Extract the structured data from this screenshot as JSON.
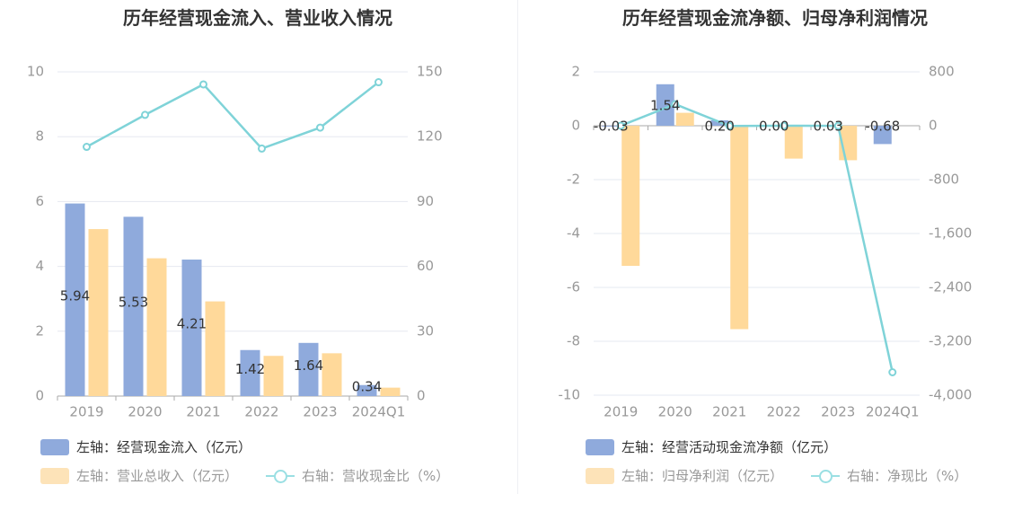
{
  "charts": {
    "left": {
      "title": "历年经营现金流入、营业收入情况",
      "legend": [
        {
          "label": "左轴：经营现金流入（亿元）",
          "color": "#8faadc"
        },
        {
          "label": "左轴：营业总收入（亿元）",
          "color": "#ffd99a"
        },
        {
          "label": "右轴：营收现金比（%）",
          "color": "#7fd3d8"
        }
      ]
    },
    "right": {
      "title": "历年经营现金流净额、归母净利润情况",
      "legend": [
        {
          "label": "左轴：经营活动现金流净额（亿元）",
          "color": "#8faadc"
        },
        {
          "label": "左轴：归母净利润（亿元）",
          "color": "#ffd99a"
        },
        {
          "label": "右轴：净现比（%）",
          "color": "#7fd3d8"
        }
      ]
    }
  },
  "chart_data": [
    {
      "type": "bar",
      "title": "历年经营现金流入、营业收入情况",
      "categories": [
        "2019",
        "2020",
        "2021",
        "2022",
        "2023",
        "2024Q1"
      ],
      "left_axis": {
        "ylim": [
          0,
          10
        ],
        "ticks": [
          "0",
          "2",
          "4",
          "6",
          "8",
          "10"
        ]
      },
      "right_axis": {
        "ylim": [
          0,
          150
        ],
        "ticks": [
          "0",
          "30",
          "60",
          "90",
          "120",
          "150"
        ]
      },
      "series": [
        {
          "name": "左轴：经营现金流入（亿元）",
          "kind": "bar",
          "axis": "left",
          "color": "#8faadc",
          "values": [
            5.94,
            5.53,
            4.21,
            1.42,
            1.64,
            0.34
          ],
          "labels": [
            "5.94",
            "5.53",
            "4.21",
            "1.42",
            "1.64",
            "0.34"
          ]
        },
        {
          "name": "左轴：营业总收入（亿元）",
          "kind": "bar",
          "axis": "left",
          "color": "#ffd99a",
          "values": [
            5.15,
            4.25,
            2.92,
            1.24,
            1.32,
            0.26
          ]
        },
        {
          "name": "右轴：营收现金比（%）",
          "kind": "line",
          "axis": "right",
          "color": "#7fd3d8",
          "values": [
            115.3,
            130.1,
            144.2,
            114.5,
            124.2,
            145.2
          ]
        }
      ],
      "grid": true,
      "legend_position": "bottom-left"
    },
    {
      "type": "bar",
      "title": "历年经营现金流净额、归母净利润情况",
      "categories": [
        "2019",
        "2020",
        "2021",
        "2022",
        "2023",
        "2024Q1"
      ],
      "left_axis": {
        "ylim": [
          -10,
          2
        ],
        "ticks": [
          "-10",
          "-8",
          "-6",
          "-4",
          "-2",
          "0",
          "2"
        ]
      },
      "right_axis": {
        "ylim": [
          -4000,
          800
        ],
        "ticks": [
          "-4,000",
          "-3,200",
          "-2,400",
          "-1,600",
          "-800",
          "0",
          "800"
        ]
      },
      "series": [
        {
          "name": "左轴：经营活动现金流净额（亿元）",
          "kind": "bar",
          "axis": "left",
          "color": "#8faadc",
          "values": [
            -0.03,
            1.54,
            0.2,
            0.0,
            0.03,
            -0.68
          ],
          "labels": [
            "-0.03",
            "1.54",
            "0.20",
            "0.00",
            "0.03",
            "-0.68"
          ]
        },
        {
          "name": "左轴：归母净利润（亿元）",
          "kind": "bar",
          "axis": "left",
          "color": "#ffd99a",
          "values": [
            -5.2,
            0.48,
            -7.55,
            -1.22,
            -1.28,
            0.0
          ]
        },
        {
          "name": "右轴：净现比（%）",
          "kind": "line",
          "axis": "right",
          "color": "#7fd3d8",
          "values": [
            0.6,
            320.0,
            -2.6,
            0.0,
            -2.3,
            -3660.0
          ]
        }
      ],
      "grid": true,
      "legend_position": "bottom-left"
    }
  ]
}
